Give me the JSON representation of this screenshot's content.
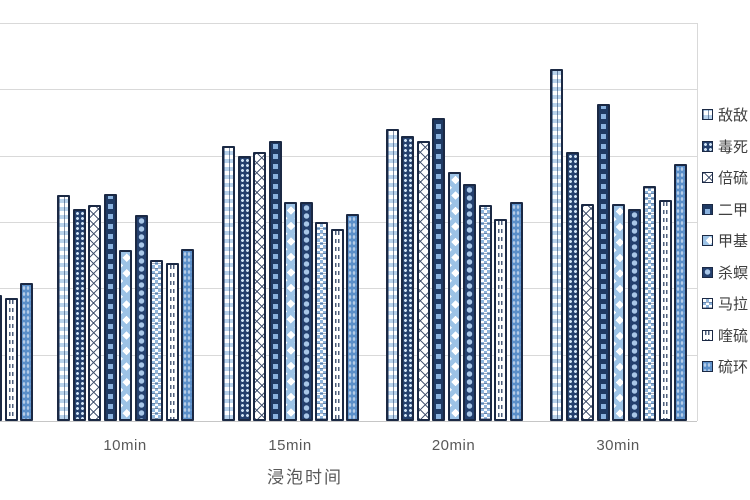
{
  "chart_data": {
    "type": "bar",
    "title": "",
    "xlabel": "浸泡时间",
    "ylabel": "",
    "categories": [
      "",
      "10min",
      "15min",
      "20min",
      "30min"
    ],
    "x_tick_labels": [
      "10min",
      "15min",
      "20min",
      "30min"
    ],
    "series": [
      {
        "name": "敌敌",
        "pattern": "light-checker-grid",
        "values": [
          null,
          68,
          83,
          88,
          106
        ]
      },
      {
        "name": "毒死",
        "pattern": "navy-light-dots",
        "values": [
          null,
          64,
          80,
          86,
          81
        ]
      },
      {
        "name": "倍硫",
        "pattern": "diagonal-lattice",
        "values": [
          null,
          65,
          81,
          84.5,
          65.5
        ]
      },
      {
        "name": "二甲",
        "pattern": "navy-dash-ladder",
        "values": [
          null,
          68.5,
          84.5,
          91.5,
          95.5
        ]
      },
      {
        "name": "甲基",
        "pattern": "large-diamonds",
        "values": [
          null,
          51.5,
          66,
          75,
          65.5
        ]
      },
      {
        "name": "杀螟",
        "pattern": "navy-circles",
        "values": [
          null,
          62,
          66,
          71.5,
          64
        ]
      },
      {
        "name": "马拉",
        "pattern": "fine-checkerboard",
        "values": [
          38,
          48.5,
          60,
          65,
          71
        ]
      },
      {
        "name": "喹硫",
        "pattern": "vertical-dashes",
        "values": [
          37,
          47.5,
          58,
          61,
          66.5
        ]
      },
      {
        "name": "硫环",
        "pattern": "solid-blue-dots",
        "values": [
          41.5,
          52,
          62.5,
          66,
          77.5
        ]
      }
    ],
    "ylim": [
      0,
      120
    ],
    "y_tick_interval": 20,
    "y_axis_labels_visible": false,
    "grid": true,
    "legend_position": "right",
    "notes": "leftmost category group, y-axis labels and legend label text are cropped at the image edges"
  },
  "colors": {
    "bar_border": "#1b2944",
    "navy_fill": "#24406e",
    "medium_blue": "#5b8fc9",
    "light_blue": "#a9c7e8",
    "gridline": "#d9d9d9",
    "axis_text": "#595959",
    "legend_text": "#3f3f3f",
    "background": "#ffffff"
  }
}
